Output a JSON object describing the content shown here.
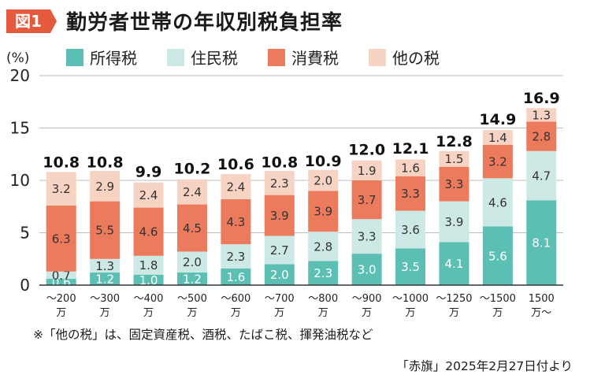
{
  "figure": {
    "badge": "図1",
    "title": "勤労者世帯の年収別税負担率",
    "footnote": "※「他の税」は、固定資産税、酒税、たばこ税、揮発油税など",
    "source": "「赤旗」2025年2月27日付より"
  },
  "colors": {
    "badge": "#e45a3c",
    "grid": "#bdbdbd",
    "axis": "#333333",
    "label_dark": "#333333",
    "label_light": "#ffffff"
  },
  "chart_data": {
    "type": "bar",
    "stacked": true,
    "ylabel": "(%)",
    "ylim": [
      0,
      20
    ],
    "yticks": [
      "0",
      "5",
      "10",
      "15",
      "20"
    ],
    "grid": true,
    "legend_position": "top",
    "categories": [
      [
        "～200",
        "万"
      ],
      [
        "～300",
        "万"
      ],
      [
        "～400",
        "万"
      ],
      [
        "～500",
        "万"
      ],
      [
        "～600",
        "万"
      ],
      [
        "～700",
        "万"
      ],
      [
        "～800",
        "万"
      ],
      [
        "～900",
        "万"
      ],
      [
        "～1000",
        "万"
      ],
      [
        "～1250",
        "万"
      ],
      [
        "～1500",
        "万"
      ],
      [
        "1500",
        "万～"
      ]
    ],
    "series": [
      {
        "name": "所得税",
        "color": "#5cbfb4",
        "values": [
          0.6,
          1.2,
          1.0,
          1.2,
          1.6,
          2.0,
          2.3,
          3.0,
          3.5,
          4.1,
          5.6,
          8.1
        ],
        "labels": [
          "0.6",
          "1.2",
          "1.0",
          "1.2",
          "1.6",
          "2.0",
          "2.3",
          "3.0",
          "3.5",
          "4.1",
          "5.6",
          "8.1"
        ]
      },
      {
        "name": "住民税",
        "color": "#cde9e6",
        "values": [
          0.7,
          1.3,
          1.8,
          2.0,
          2.3,
          2.7,
          2.8,
          3.3,
          3.6,
          3.9,
          4.6,
          4.7
        ],
        "labels": [
          "0.7",
          "1.3",
          "1.8",
          "2.0",
          "2.3",
          "2.7",
          "2.8",
          "3.3",
          "3.6",
          "3.9",
          "4.6",
          "4.7"
        ]
      },
      {
        "name": "消費税",
        "color": "#ec7a5d",
        "values": [
          6.3,
          5.5,
          4.6,
          4.5,
          4.3,
          3.9,
          3.9,
          3.7,
          3.3,
          3.3,
          3.2,
          2.8
        ],
        "labels": [
          "6.3",
          "5.5",
          "4.6",
          "4.5",
          "4.3",
          "3.9",
          "3.9",
          "3.7",
          "3.3",
          "3.3",
          "3.2",
          "2.8"
        ]
      },
      {
        "name": "他の税",
        "color": "#f7d3c3",
        "values": [
          3.2,
          2.9,
          2.4,
          2.4,
          2.4,
          2.3,
          2.0,
          1.9,
          1.6,
          1.5,
          1.4,
          1.3
        ],
        "labels": [
          "3.2",
          "2.9",
          "2.4",
          "2.4",
          "2.4",
          "2.3",
          "2.0",
          "1.9",
          "1.6",
          "1.5",
          "1.4",
          "1.3"
        ]
      }
    ],
    "totals": [
      10.8,
      10.8,
      9.9,
      10.2,
      10.6,
      10.8,
      10.9,
      12.0,
      12.1,
      12.8,
      14.9,
      16.9
    ],
    "total_labels": [
      "10.8",
      "10.8",
      "9.9",
      "10.2",
      "10.6",
      "10.8",
      "10.9",
      "12.0",
      "12.1",
      "12.8",
      "14.9",
      "16.9"
    ]
  }
}
